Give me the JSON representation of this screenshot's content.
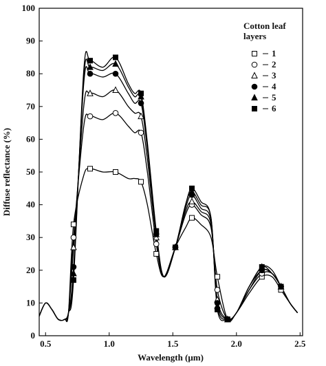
{
  "chart_data": {
    "type": "line",
    "x_label": "Wavelength (μm)",
    "y_label": "Diffuse reflectance (%)",
    "legend_title": "Cotton leaf layers",
    "x": [
      0.45,
      0.5,
      0.55,
      0.6,
      0.65,
      0.68,
      0.72,
      0.8,
      0.85,
      0.95,
      1.05,
      1.15,
      1.2,
      1.25,
      1.3,
      1.37,
      1.43,
      1.52,
      1.6,
      1.65,
      1.72,
      1.8,
      1.85,
      1.93,
      2.0,
      2.1,
      2.2,
      2.28,
      2.35,
      2.42,
      2.48
    ],
    "series": [
      {
        "name": "1",
        "color": "#000000",
        "marker": "square-open",
        "values": [
          6,
          10,
          8,
          5,
          5,
          7,
          34,
          49,
          51,
          50,
          50,
          48,
          48,
          47,
          40,
          25,
          18,
          27,
          33,
          36,
          34,
          30,
          18,
          5,
          7,
          13,
          18,
          18,
          14,
          10,
          7
        ]
      },
      {
        "name": "2",
        "color": "#000000",
        "marker": "circle-open",
        "values": [
          6,
          10,
          8,
          5,
          5,
          7,
          30,
          64,
          67,
          66,
          68,
          64,
          62,
          62,
          50,
          28,
          18,
          27,
          37,
          40,
          37,
          33,
          14,
          5,
          7,
          14,
          19,
          19,
          15,
          10,
          7
        ]
      },
      {
        "name": "3",
        "color": "#000000",
        "marker": "triangle-open",
        "values": [
          6,
          10,
          8,
          5,
          5,
          7,
          27,
          70,
          74,
          73,
          75,
          70,
          68,
          67,
          54,
          30,
          18,
          27,
          38,
          41,
          38,
          34,
          11,
          5,
          7,
          14,
          20,
          19,
          15,
          10,
          7
        ]
      },
      {
        "name": "4",
        "color": "#000000",
        "marker": "circle-filled",
        "values": [
          6,
          10,
          8,
          5,
          5,
          7,
          21,
          77,
          80,
          79,
          80,
          74,
          71,
          71,
          57,
          31,
          18,
          27,
          39,
          43,
          39,
          35,
          10,
          5,
          7,
          15,
          20,
          19,
          15,
          10,
          7
        ]
      },
      {
        "name": "5",
        "color": "#000000",
        "marker": "triangle-filled",
        "values": [
          6,
          10,
          8,
          5,
          5,
          7,
          19,
          79,
          82,
          81,
          83,
          76,
          73,
          73,
          58,
          31,
          18,
          27,
          40,
          44,
          40,
          36,
          9,
          5,
          7,
          15,
          21,
          19,
          15,
          10,
          7
        ]
      },
      {
        "name": "6",
        "color": "#000000",
        "marker": "square-filled",
        "values": [
          6,
          10,
          8,
          5,
          5,
          7,
          17,
          81,
          84,
          82,
          85,
          77,
          74,
          74,
          59,
          32,
          18,
          27,
          40,
          45,
          41,
          36,
          8,
          5,
          7,
          15,
          21,
          20,
          15,
          10,
          7
        ]
      }
    ],
    "xlim": [
      0.45,
      2.52
    ],
    "ylim": [
      0,
      100
    ],
    "xticks": [
      0.5,
      {
        "value": 1,
        "label": "1.0"
      },
      {
        "value": 1.5,
        "label": "1.5"
      },
      {
        "value": 2,
        "label": "2.0"
      },
      {
        "value": 2.5,
        "label": "2.5"
      }
    ],
    "yticks": [
      0,
      10,
      20,
      30,
      40,
      50,
      60,
      70,
      80,
      90,
      100
    ]
  }
}
